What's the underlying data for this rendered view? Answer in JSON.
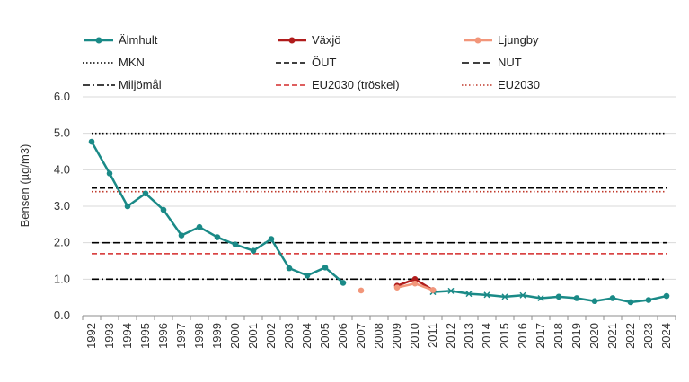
{
  "chart_data": {
    "type": "line",
    "title": "",
    "xlabel": "",
    "ylabel": "Bensen (µg/m3)",
    "ylim": [
      0,
      6
    ],
    "yticks": [
      "0.0",
      "1.0",
      "2.0",
      "3.0",
      "4.0",
      "5.0",
      "6.0"
    ],
    "categories": [
      "1992",
      "1993",
      "1994",
      "1995",
      "1996",
      "1997",
      "1998",
      "1999",
      "2000",
      "2001",
      "2002",
      "2003",
      "2004",
      "2005",
      "2006",
      "2007",
      "2008",
      "2009",
      "2010",
      "2011",
      "2012",
      "2013",
      "2014",
      "2015",
      "2016",
      "2017",
      "2018",
      "2019",
      "2020",
      "2021",
      "2022",
      "2023",
      "2024"
    ],
    "grid": "horizontal",
    "legend_position": "top",
    "series": [
      {
        "name": "Älmhult",
        "color": "#1a8a87",
        "values": [
          4.77,
          3.9,
          3.0,
          3.35,
          2.9,
          2.2,
          2.43,
          2.15,
          1.95,
          1.78,
          2.1,
          1.3,
          1.1,
          1.32,
          0.9,
          null,
          null,
          null,
          null,
          0.65,
          0.68,
          0.6,
          0.57,
          0.52,
          0.56,
          0.48,
          0.52,
          0.48,
          0.4,
          0.48,
          0.37,
          0.43,
          0.54
        ],
        "markers": [
          "circle",
          "circle",
          "circle",
          "circle",
          "circle",
          "circle",
          "circle",
          "circle",
          "circle",
          "circle",
          "circle",
          "circle",
          "circle",
          "circle",
          "circle",
          null,
          null,
          null,
          null,
          "x",
          "x",
          "x",
          "x",
          "x",
          "x",
          "x",
          "circle",
          "circle",
          "circle",
          "circle",
          "circle",
          "circle",
          "circle"
        ]
      },
      {
        "name": "Växjö",
        "color": "#b01c1c",
        "values": [
          null,
          null,
          null,
          null,
          null,
          null,
          null,
          null,
          null,
          null,
          null,
          null,
          null,
          null,
          null,
          null,
          null,
          0.82,
          1.0,
          0.7,
          null,
          null,
          null,
          null,
          null,
          null,
          null,
          null,
          null,
          null,
          null,
          null,
          null
        ]
      },
      {
        "name": "Ljungby",
        "color": "#f2967a",
        "values": [
          null,
          null,
          null,
          null,
          null,
          null,
          null,
          null,
          null,
          null,
          null,
          null,
          null,
          null,
          null,
          0.69,
          null,
          0.77,
          0.88,
          0.7,
          null,
          null,
          null,
          null,
          null,
          null,
          null,
          null,
          null,
          null,
          null,
          null,
          null
        ]
      }
    ],
    "reference_lines": [
      {
        "name": "MKN",
        "value": 5.0,
        "color": "#000000",
        "style": "dotted"
      },
      {
        "name": "ÖUT",
        "value": 3.5,
        "color": "#000000",
        "style": "dashed"
      },
      {
        "name": "NUT",
        "value": 2.0,
        "color": "#000000",
        "style": "longdash"
      },
      {
        "name": "Miljömål",
        "value": 1.0,
        "color": "#000000",
        "style": "dashdot"
      },
      {
        "name": "EU2030 (tröskel)",
        "value": 1.7,
        "color": "#d42a2a",
        "style": "dashed"
      },
      {
        "name": "EU2030",
        "value": 3.4,
        "color": "#c0392b",
        "style": "dotted"
      }
    ]
  }
}
